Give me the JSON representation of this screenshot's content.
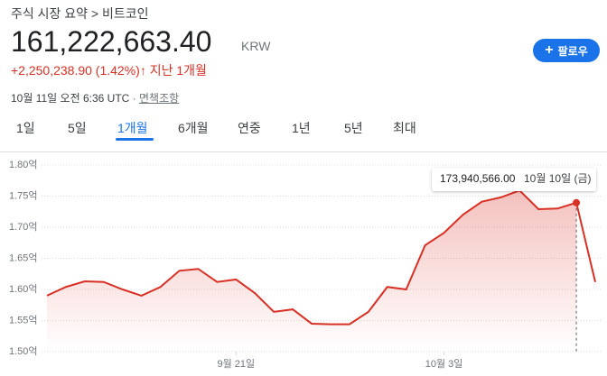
{
  "header": {
    "breadcrumb": "주식 시장 요약 > 비트코인",
    "price": "161,222,663.40",
    "currency": "KRW",
    "change": "+2,250,238.90 (1.42%)",
    "change_arrow": "↑",
    "period": "지난 1개월",
    "timestamp": "10월 11일 오전 6:36 UTC",
    "separator": "·",
    "disclaimer": "면책조항",
    "follow": "팔로우",
    "follow_icon": "+"
  },
  "tabs": [
    "1일",
    "5일",
    "1개월",
    "6개월",
    "연중",
    "1년",
    "5년",
    "최대"
  ],
  "selected_tab": 2,
  "chart_data": {
    "type": "line",
    "color": "#d93025",
    "categories": [
      null,
      null,
      null,
      null,
      null,
      null,
      null,
      null,
      null,
      null,
      "9월 21일",
      null,
      null,
      null,
      null,
      null,
      null,
      null,
      null,
      null,
      null,
      "10월 3일",
      null,
      null,
      null,
      null,
      null,
      null,
      null,
      null
    ],
    "values": [
      1.59,
      1.604,
      1.613,
      1.612,
      1.6,
      1.59,
      1.604,
      1.63,
      1.633,
      1.612,
      1.616,
      1.594,
      1.564,
      1.568,
      1.545,
      1.544,
      1.544,
      1.564,
      1.604,
      1.6,
      1.671,
      1.691,
      1.72,
      1.741,
      1.748,
      1.759,
      1.729,
      1.73,
      1.73940566,
      1.612
    ],
    "value_labels": [
      null,
      null,
      null,
      null,
      null,
      null,
      null,
      null,
      null,
      null,
      null,
      null,
      null,
      null,
      null,
      null,
      null,
      null,
      null,
      null,
      null,
      null,
      null,
      null,
      null,
      null,
      null,
      null,
      "173,940,566.00",
      null
    ],
    "tooltip_date": "10월 10일 (금)",
    "ylim": [
      1.5,
      1.8
    ],
    "yticks": [
      {
        "value": 1.5,
        "label": "1.50억"
      },
      {
        "value": 1.55,
        "label": "1.55억"
      },
      {
        "value": 1.6,
        "label": "1.60억"
      },
      {
        "value": 1.65,
        "label": "1.65억"
      },
      {
        "value": 1.7,
        "label": "1.70억"
      },
      {
        "value": 1.75,
        "label": "1.75억"
      },
      {
        "value": 1.8,
        "label": "1.80억"
      }
    ],
    "grid": true
  }
}
